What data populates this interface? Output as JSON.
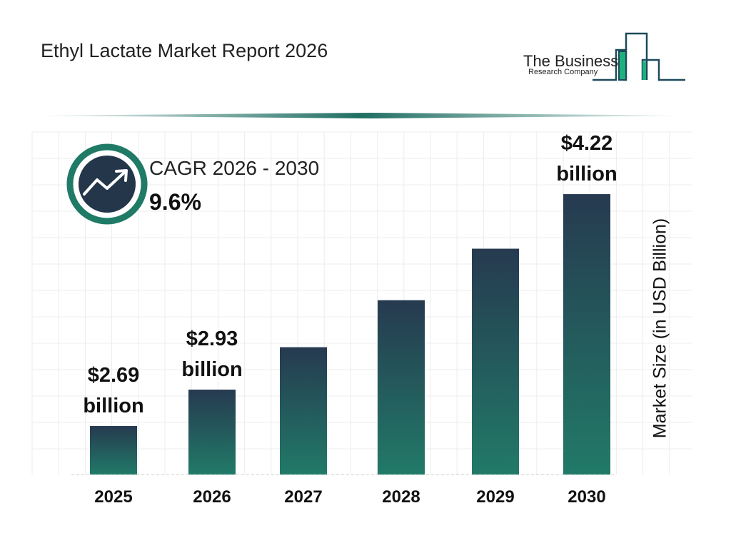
{
  "header": {
    "title": "Ethyl Lactate Market Report 2026"
  },
  "logo": {
    "line1": "The Business",
    "line2": "Research Company",
    "colors": {
      "outline": "#1d4a5a",
      "fill": "#1fb07e"
    }
  },
  "cagr": {
    "label": "CAGR 2026 - 2030",
    "value": "9.6%",
    "icon": "trending-up-icon",
    "ring_color": "#1f7a66",
    "inner_color": "#24364a"
  },
  "chart_data": {
    "type": "bar",
    "title": "",
    "xlabel": "",
    "ylabel": "Market Size (in USD Billion)",
    "categories": [
      "2025",
      "2026",
      "2027",
      "2028",
      "2029",
      "2030"
    ],
    "values": [
      2.69,
      2.93,
      3.21,
      3.52,
      3.86,
      4.22
    ],
    "data_labels": [
      {
        "index": 0,
        "amount": "$2.69",
        "unit": "billion"
      },
      {
        "index": 1,
        "amount": "$2.93",
        "unit": "billion"
      },
      {
        "index": 5,
        "amount": "$4.22",
        "unit": "billion"
      }
    ],
    "grid": true,
    "bar_gradient": {
      "top": "#263a50",
      "bottom": "#217a68"
    }
  }
}
